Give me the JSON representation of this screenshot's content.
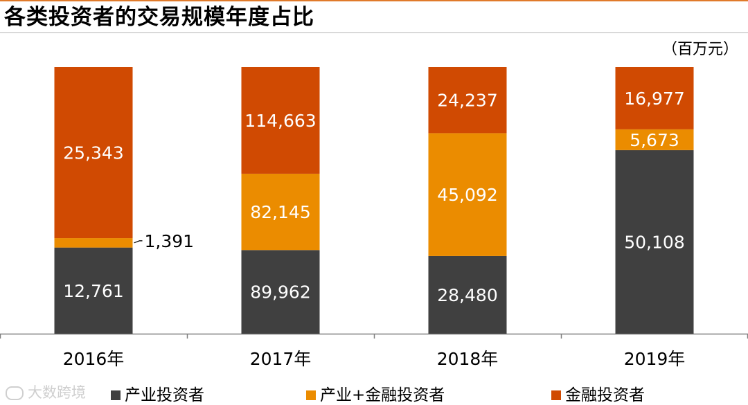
{
  "chart_data": {
    "type": "bar",
    "stacked": true,
    "title": "各类投资者的交易规模年度占比",
    "unit": "（百万元）",
    "categories": [
      "2016年",
      "2017年",
      "2018年",
      "2019年"
    ],
    "series": [
      {
        "name": "产业投资者",
        "color": "#404040",
        "values": [
          12761,
          89962,
          28480,
          50108
        ]
      },
      {
        "name": "产业+金融投资者",
        "color": "#eb8c00",
        "values": [
          1391,
          82145,
          45092,
          5673
        ]
      },
      {
        "name": "金融投资者",
        "color": "#d04a02",
        "values": [
          25343,
          114663,
          24237,
          16977
        ]
      }
    ],
    "labels": [
      [
        "12,761",
        "89,962",
        "28,480",
        "50,108"
      ],
      [
        "1,391",
        "82,145",
        "45,092",
        "5,673"
      ],
      [
        "25,343",
        "114,663",
        "24,237",
        "16,977"
      ]
    ],
    "normalized": "100%",
    "legend_position": "bottom",
    "grid": false
  },
  "watermark": "大数跨境"
}
